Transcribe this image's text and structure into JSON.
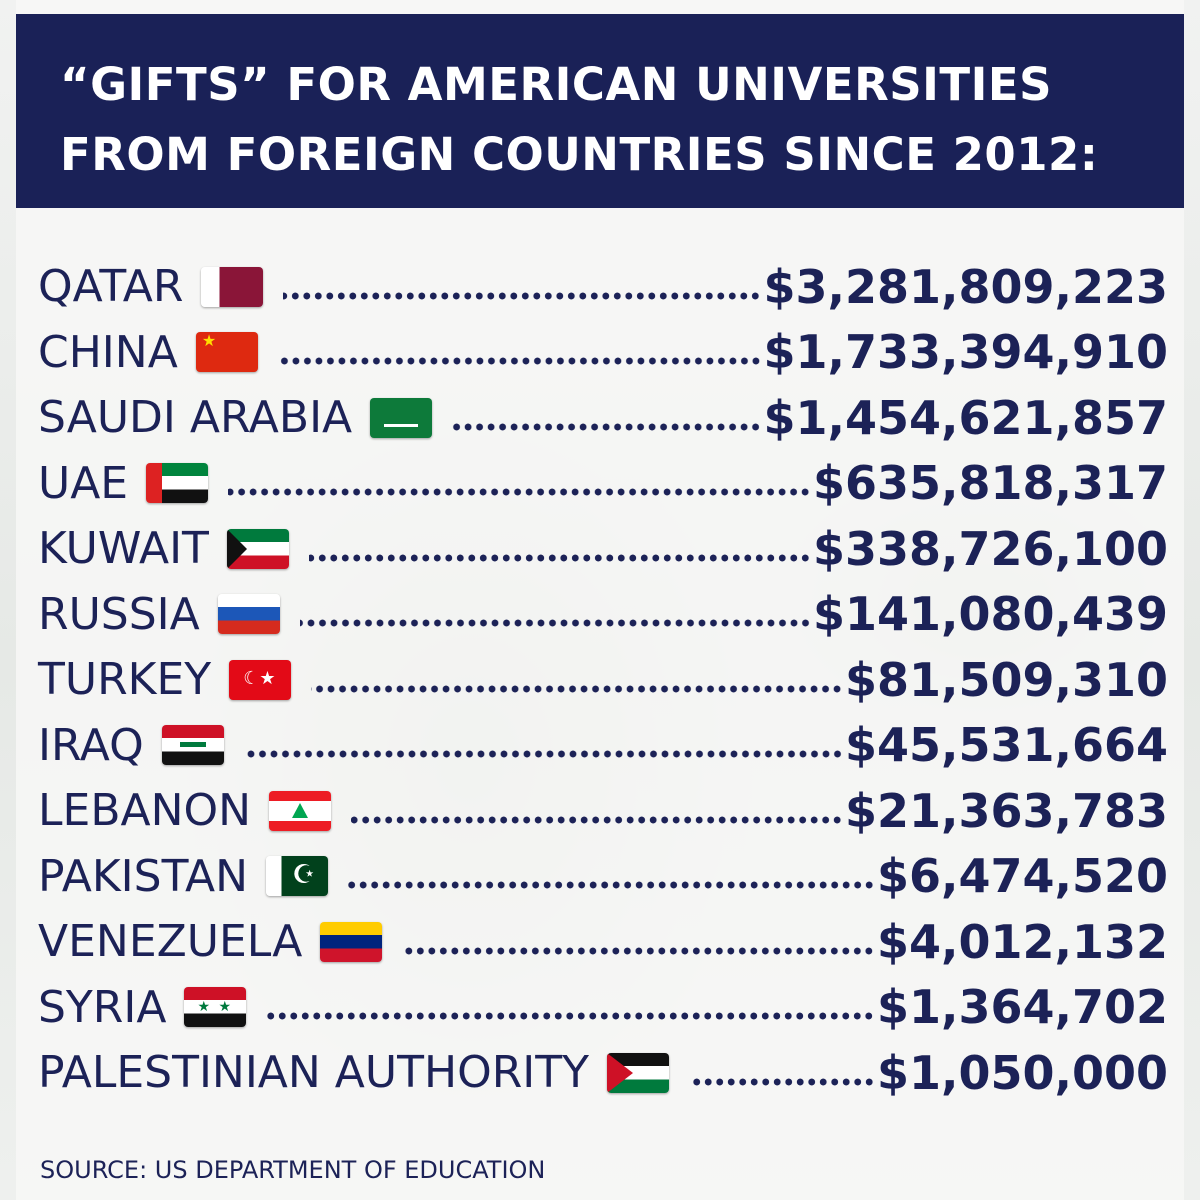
{
  "header": {
    "line1": "“GIFTS” FOR AMERICAN UNIVERSITIES",
    "line2": "FROM FOREIGN COUNTRIES SINCE 2012:"
  },
  "rows": [
    {
      "country": "QATAR",
      "flag": "qatar-flag-icon",
      "amount": "$3,281,809,223"
    },
    {
      "country": "CHINA",
      "flag": "china-flag-icon",
      "amount": "$1,733,394,910"
    },
    {
      "country": "SAUDI ARABIA",
      "flag": "saudi-arabia-flag-icon",
      "amount": "$1,454,621,857"
    },
    {
      "country": "UAE",
      "flag": "uae-flag-icon",
      "amount": "$635,818,317"
    },
    {
      "country": "KUWAIT",
      "flag": "kuwait-flag-icon",
      "amount": "$338,726,100"
    },
    {
      "country": "RUSSIA",
      "flag": "russia-flag-icon",
      "amount": "$141,080,439"
    },
    {
      "country": "TURKEY",
      "flag": "turkey-flag-icon",
      "amount": "$81,509,310"
    },
    {
      "country": "IRAQ",
      "flag": "iraq-flag-icon",
      "amount": "$45,531,664"
    },
    {
      "country": "LEBANON",
      "flag": "lebanon-flag-icon",
      "amount": "$21,363,783"
    },
    {
      "country": "PAKISTAN",
      "flag": "pakistan-flag-icon",
      "amount": "$6,474,520"
    },
    {
      "country": "VENEZUELA",
      "flag": "venezuela-flag-icon",
      "amount": "$4,012,132"
    },
    {
      "country": "SYRIA",
      "flag": "syria-flag-icon",
      "amount": "$1,364,702"
    },
    {
      "country": "PALESTINIAN AUTHORITY",
      "flag": "palestine-flag-icon",
      "amount": "$1,050,000"
    }
  ],
  "footer": {
    "source": "SOURCE: US DEPARTMENT OF EDUCATION"
  },
  "colors": {
    "header_bg": "#1a2157",
    "text": "#1c2257"
  }
}
